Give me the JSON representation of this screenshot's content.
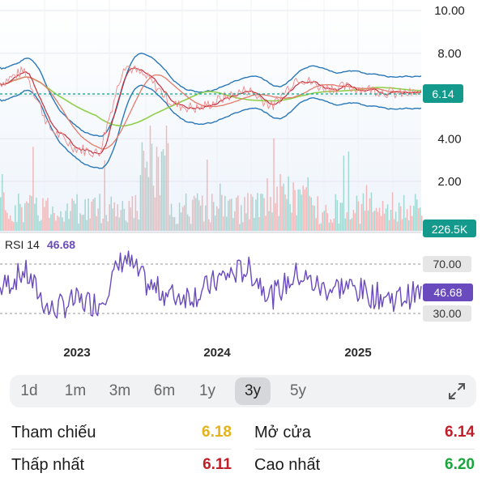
{
  "price_axis": {
    "ticks": [
      "10.00",
      "8.00",
      "6.00",
      "4.00",
      "2.00"
    ],
    "current": "6.14",
    "current_color": "#149a8c"
  },
  "volume": {
    "label": "226.5K"
  },
  "rsi": {
    "name": "RSI 14",
    "value": "46.68",
    "ticks": [
      "70.00",
      "30.00"
    ],
    "color": "#6a4bbd"
  },
  "years": [
    "2023",
    "2024",
    "2025"
  ],
  "ranges": [
    {
      "label": "1d",
      "active": false
    },
    {
      "label": "1m",
      "active": false
    },
    {
      "label": "3m",
      "active": false
    },
    {
      "label": "6m",
      "active": false
    },
    {
      "label": "1y",
      "active": false
    },
    {
      "label": "3y",
      "active": true
    },
    {
      "label": "5y",
      "active": false
    }
  ],
  "stats": [
    {
      "label": "Tham chiếu",
      "value": "6.18",
      "color": "#e5b21c"
    },
    {
      "label": "Mở cửa",
      "value": "6.14",
      "color": "#c01e28"
    },
    {
      "label": "Thấp nhất",
      "value": "6.11",
      "color": "#c01e28"
    },
    {
      "label": "Cao nhất",
      "value": "6.20",
      "color": "#1aa63c"
    }
  ],
  "chart_data": {
    "type": "line",
    "x": [
      "2022-09",
      "2022-11",
      "2023-01",
      "2023-03",
      "2023-05",
      "2023-07",
      "2023-09",
      "2023-11",
      "2024-01",
      "2024-03",
      "2024-05",
      "2024-07",
      "2024-09",
      "2024-11",
      "2025-01",
      "2025-03",
      "2025-05",
      "2025-07"
    ],
    "series": [
      {
        "values": [
          6.6,
          7.2,
          4.5,
          3.6,
          3.3,
          7.5,
          6.8,
          5.6,
          5.4,
          5.9,
          6.3,
          5.5,
          6.9,
          6.4,
          6.4,
          6.3,
          6.1,
          6.14
        ]
      }
    ],
    "ylim": [
      0,
      10.5
    ],
    "rsi": [
      50,
      64,
      32,
      40,
      38,
      76,
      52,
      44,
      46,
      60,
      66,
      44,
      62,
      50,
      52,
      45,
      42,
      46.68
    ],
    "rsi_levels": [
      70,
      30
    ]
  }
}
